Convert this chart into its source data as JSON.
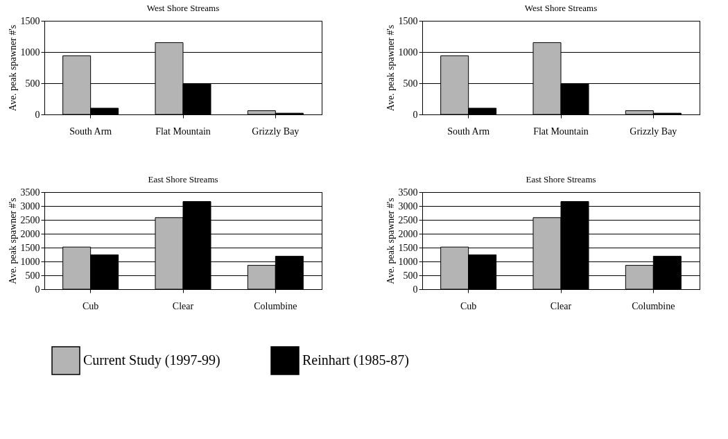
{
  "chart_data": [
    {
      "type": "bar",
      "title": "West Shore Streams",
      "ylabel": "Ave. peak spawner #'s",
      "categories": [
        "South Arm",
        "Flat Mountain",
        "Grizzly Bay"
      ],
      "ylim": [
        0,
        1500
      ],
      "yticks": [
        0,
        500,
        1000,
        1500
      ],
      "grid": "y",
      "legend": "bottom",
      "series": [
        {
          "name": "Current Study (1997-99)",
          "color": "#b4b4b4",
          "values": [
            940,
            1150,
            60
          ]
        },
        {
          "name": "Reinhart (1985-87)",
          "color": "#000000",
          "values": [
            100,
            490,
            20
          ]
        }
      ]
    },
    {
      "type": "bar",
      "title": "West Shore Streams",
      "ylabel": "Ave. peak spawner #'s",
      "categories": [
        "South Arm",
        "Flat Mountain",
        "Grizzly Bay"
      ],
      "ylim": [
        0,
        1500
      ],
      "yticks": [
        0,
        500,
        1000,
        1500
      ],
      "grid": "y",
      "legend": "bottom",
      "series": [
        {
          "name": "Current Study (1997-99)",
          "color": "#b4b4b4",
          "values": [
            940,
            1150,
            60
          ]
        },
        {
          "name": "Reinhart (1985-87)",
          "color": "#000000",
          "values": [
            100,
            490,
            20
          ]
        }
      ]
    },
    {
      "type": "bar",
      "title": "East Shore Streams",
      "ylabel": "Ave. peak spawner #'s",
      "categories": [
        "Cub",
        "Clear",
        "Columbine"
      ],
      "ylim": [
        0,
        3500
      ],
      "yticks": [
        0,
        500,
        1000,
        1500,
        2000,
        2500,
        3000,
        3500
      ],
      "grid": "y",
      "legend": "bottom",
      "series": [
        {
          "name": "Current Study (1997-99)",
          "color": "#b4b4b4",
          "values": [
            1520,
            2580,
            860
          ]
        },
        {
          "name": "Reinhart (1985-87)",
          "color": "#000000",
          "values": [
            1240,
            3160,
            1190
          ]
        }
      ]
    },
    {
      "type": "bar",
      "title": "East Shore Streams",
      "ylabel": "Ave. peak spawner #'s",
      "categories": [
        "Cub",
        "Clear",
        "Columbine"
      ],
      "ylim": [
        0,
        3500
      ],
      "yticks": [
        0,
        500,
        1000,
        1500,
        2000,
        2500,
        3000,
        3500
      ],
      "grid": "y",
      "legend": "bottom",
      "series": [
        {
          "name": "Current Study (1997-99)",
          "color": "#b4b4b4",
          "values": [
            1520,
            2580,
            860
          ]
        },
        {
          "name": "Reinhart (1985-87)",
          "color": "#000000",
          "values": [
            1240,
            3160,
            1190
          ]
        }
      ]
    }
  ]
}
